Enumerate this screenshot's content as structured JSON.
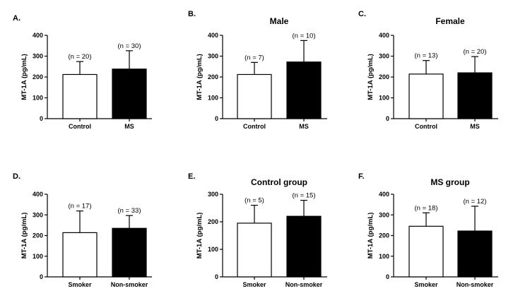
{
  "chart_data": [
    {
      "type": "bar",
      "panel": "A.",
      "title": "",
      "ylabel": "MT-1A (pg/mL)",
      "xlabel": "",
      "ylim": [
        0,
        400
      ],
      "yticks": [
        0,
        100,
        200,
        300,
        400
      ],
      "categories": [
        "Control",
        "MS"
      ],
      "values": [
        212,
        238
      ],
      "errors": [
        62,
        88
      ],
      "n_labels": [
        "(n = 20)",
        "(n = 30)"
      ],
      "fills": [
        "#ffffff",
        "#000000"
      ]
    },
    {
      "type": "bar",
      "panel": "B.",
      "title": "Male",
      "ylabel": "MT-1A (pg/mL)",
      "xlabel": "",
      "ylim": [
        0,
        400
      ],
      "yticks": [
        0,
        100,
        200,
        300,
        400
      ],
      "categories": [
        "Control",
        "MS"
      ],
      "values": [
        212,
        272
      ],
      "errors": [
        58,
        103
      ],
      "n_labels": [
        "(n = 7)",
        "(n = 10)"
      ],
      "fills": [
        "#ffffff",
        "#000000"
      ]
    },
    {
      "type": "bar",
      "panel": "C.",
      "title": "Female",
      "ylabel": "MT-1A (pg/mL)",
      "xlabel": "",
      "ylim": [
        0,
        400
      ],
      "yticks": [
        0,
        100,
        200,
        300,
        400
      ],
      "categories": [
        "Control",
        "MS"
      ],
      "values": [
        214,
        220
      ],
      "errors": [
        65,
        78
      ],
      "n_labels": [
        "(n = 13)",
        "(n = 20)"
      ],
      "fills": [
        "#ffffff",
        "#000000"
      ]
    },
    {
      "type": "bar",
      "panel": "D.",
      "title": "",
      "ylabel": "MT-1A (pg/mL)",
      "xlabel": "",
      "ylim": [
        0,
        400
      ],
      "yticks": [
        0,
        100,
        200,
        300,
        400
      ],
      "categories": [
        "Smoker",
        "Non-smoker"
      ],
      "values": [
        214,
        235
      ],
      "errors": [
        105,
        62
      ],
      "n_labels": [
        "(n = 17)",
        "(n = 33)"
      ],
      "fills": [
        "#ffffff",
        "#000000"
      ]
    },
    {
      "type": "bar",
      "panel": "E.",
      "title": "Control group",
      "ylabel": "MT-1A (pg/mL)",
      "xlabel": "",
      "ylim": [
        0,
        300
      ],
      "yticks": [
        0,
        100,
        200,
        300
      ],
      "categories": [
        "Smoker",
        "Non-smoker"
      ],
      "values": [
        195,
        220
      ],
      "errors": [
        65,
        58
      ],
      "n_labels": [
        "(n = 5)",
        "(n = 15)"
      ],
      "fills": [
        "#ffffff",
        "#000000"
      ]
    },
    {
      "type": "bar",
      "panel": "F.",
      "title": "MS group",
      "ylabel": "MT-1A (pg/mL)",
      "xlabel": "",
      "ylim": [
        0,
        400
      ],
      "yticks": [
        0,
        100,
        200,
        300,
        400
      ],
      "categories": [
        "Smoker",
        "Non-smoker"
      ],
      "values": [
        245,
        222
      ],
      "errors": [
        65,
        120
      ],
      "n_labels": [
        "(n = 18)",
        "(n = 12)"
      ],
      "fills": [
        "#ffffff",
        "#000000"
      ]
    }
  ]
}
